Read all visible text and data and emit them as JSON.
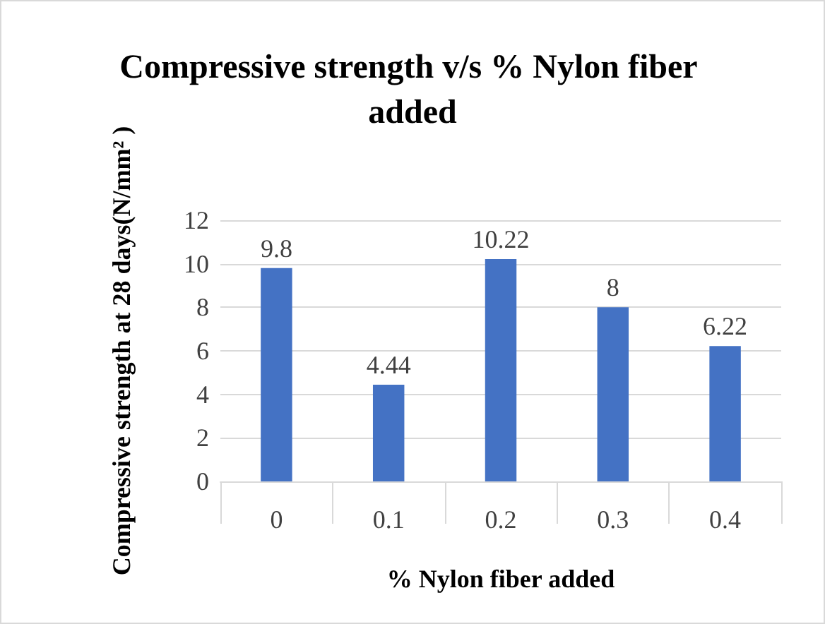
{
  "chart_data": {
    "type": "bar",
    "title": "Compressive strength v/s % Nylon fiber added",
    "xlabel": "% Nylon fiber added",
    "ylabel": "Compressive strength at 28 days(N/mm² )",
    "categories": [
      "0",
      "0.1",
      "0.2",
      "0.3",
      "0.4"
    ],
    "values": [
      9.8,
      4.44,
      10.22,
      8,
      6.22
    ],
    "color": "#4472c4",
    "ylim": [
      0,
      12
    ],
    "yticks": [
      0,
      2,
      4,
      6,
      8,
      10,
      12
    ],
    "grid": "y",
    "data_labels": true
  }
}
